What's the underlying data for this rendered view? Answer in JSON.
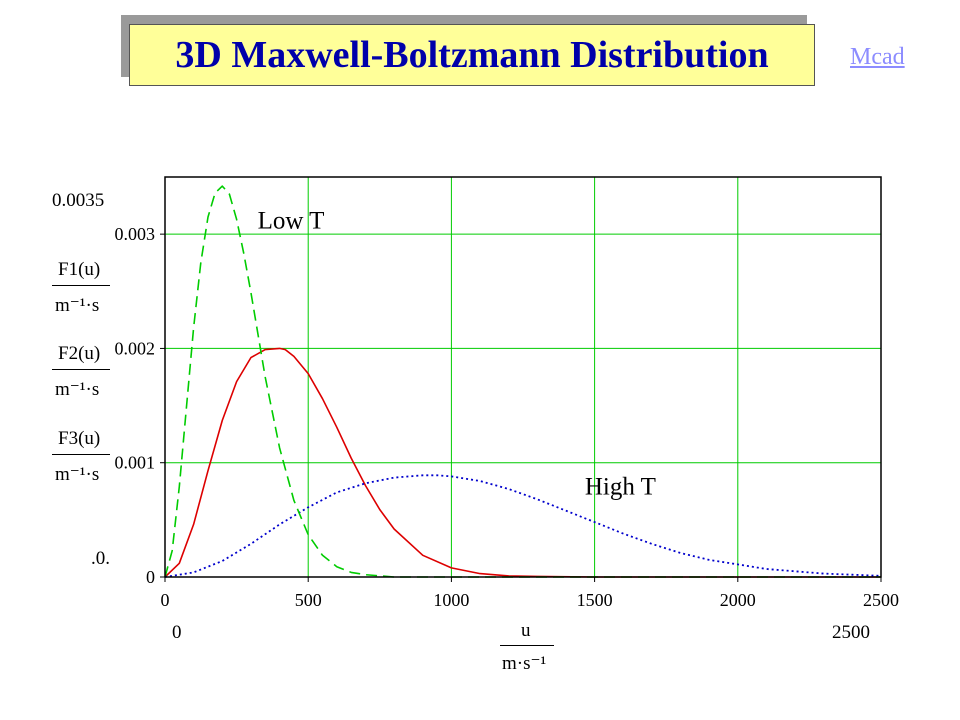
{
  "title": "3D Maxwell-Boltzmann Distribution",
  "link_label": "Mcad",
  "chart_data": {
    "type": "line",
    "title": "3D Maxwell-Boltzmann Distribution",
    "x_axis": {
      "label_numerator": "u",
      "label_denominator": "m·s⁻¹",
      "range": [
        0,
        2500
      ],
      "ticks": [
        "0",
        "500",
        "1000",
        "1500",
        "2000",
        "2500"
      ],
      "range_min_label": "0",
      "range_max_label": "2500"
    },
    "y_axis": {
      "range": [
        0,
        0.0035
      ],
      "ticks": [
        "0",
        "0.001",
        "0.002",
        "0.003"
      ],
      "range_max_label": "0.0035",
      "range_min_label": "0",
      "labels": [
        {
          "numerator": "F1(u)",
          "denominator": "m⁻¹·s",
          "color": "#dd0000",
          "dash": "solid"
        },
        {
          "numerator": "F2(u)",
          "denominator": "m⁻¹·s",
          "color": "#0000cc",
          "dash": "dotted"
        },
        {
          "numerator": "F3(u)",
          "denominator": "m⁻¹·s",
          "color": "#00cc00",
          "dash": "dashed"
        }
      ]
    },
    "grid": true,
    "grid_color": "#00cc00",
    "series": [
      {
        "id": "F1",
        "color": "#dd0000",
        "dash": "solid",
        "x": [
          0,
          50,
          100,
          150,
          200,
          250,
          300,
          350,
          400,
          420,
          450,
          500,
          550,
          600,
          650,
          700,
          750,
          800,
          900,
          1000,
          1100,
          1200,
          1300,
          1500,
          2000,
          2500
        ],
        "y": [
          0,
          0.00012,
          0.00046,
          0.00093,
          0.00137,
          0.00171,
          0.00192,
          0.00199,
          0.002,
          0.00199,
          0.00193,
          0.00178,
          0.00156,
          0.00131,
          0.00104,
          0.0008,
          0.00059,
          0.00042,
          0.00019,
          8e-05,
          3e-05,
          1e-05,
          5e-06,
          0,
          0,
          0
        ]
      },
      {
        "id": "F2",
        "color": "#0000cc",
        "dash": "dotted",
        "x": [
          0,
          100,
          200,
          300,
          400,
          500,
          600,
          700,
          800,
          900,
          950,
          1000,
          1100,
          1200,
          1300,
          1400,
          1500,
          1600,
          1700,
          1800,
          1900,
          2000,
          2100,
          2200,
          2300,
          2400,
          2500
        ],
        "y": [
          0,
          4e-05,
          0.00014,
          0.00029,
          0.00046,
          0.00061,
          0.00074,
          0.00082,
          0.00087,
          0.00089,
          0.00089,
          0.00088,
          0.00084,
          0.00077,
          0.00068,
          0.00058,
          0.00048,
          0.00038,
          0.00029,
          0.00021,
          0.00015,
          0.00011,
          7e-05,
          5e-05,
          3e-05,
          2e-05,
          1e-05
        ]
      },
      {
        "id": "F3",
        "color": "#00cc00",
        "dash": "dashed",
        "x": [
          0,
          25,
          50,
          75,
          100,
          125,
          150,
          175,
          200,
          225,
          250,
          275,
          300,
          350,
          400,
          450,
          500,
          550,
          600,
          650,
          700,
          800,
          1000,
          1500,
          2000,
          2500
        ],
        "y": [
          0,
          0.00023,
          0.00079,
          0.00149,
          0.00218,
          0.00275,
          0.00315,
          0.00336,
          0.00342,
          0.00335,
          0.00313,
          0.00283,
          0.00249,
          0.00175,
          0.00113,
          0.00067,
          0.00037,
          0.00019,
          9e-05,
          4e-05,
          2e-05,
          0,
          0,
          0,
          0,
          0
        ]
      }
    ],
    "annotations": [
      {
        "text": "Low T",
        "x": 440,
        "y": 0.00305
      },
      {
        "text": "High T",
        "x": 1590,
        "y": 0.00072
      }
    ]
  }
}
